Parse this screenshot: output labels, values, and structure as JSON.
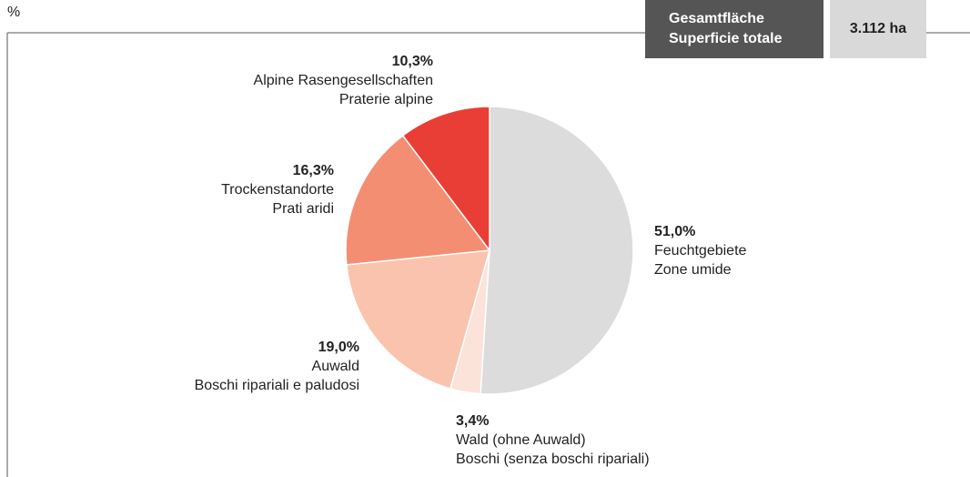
{
  "chart_data": {
    "type": "pie",
    "unit": "%",
    "total_label": [
      "Gesamtfläche",
      "Superficie totale"
    ],
    "total_value": "3.112 ha",
    "categories": [
      [
        "Feuchtgebiete",
        "Zone umide"
      ],
      [
        "Wald (ohne Auwald)",
        "Boschi (senza boschi ripariali)"
      ],
      [
        "Auwald",
        "Boschi ripariali e paludosi"
      ],
      [
        "Trockenstandorte",
        "Prati aridi"
      ],
      [
        "Alpine Rasengesellschaften",
        "Praterie alpine"
      ]
    ],
    "values": [
      51.0,
      3.4,
      19.0,
      16.3,
      10.3
    ],
    "value_labels": [
      "51,0%",
      "3,4%",
      "19,0%",
      "16,3%",
      "10,3%"
    ],
    "colors": [
      "#dcdcdd",
      "#fbe3da",
      "#f9c3ae",
      "#f48e72",
      "#e93e35"
    ]
  }
}
